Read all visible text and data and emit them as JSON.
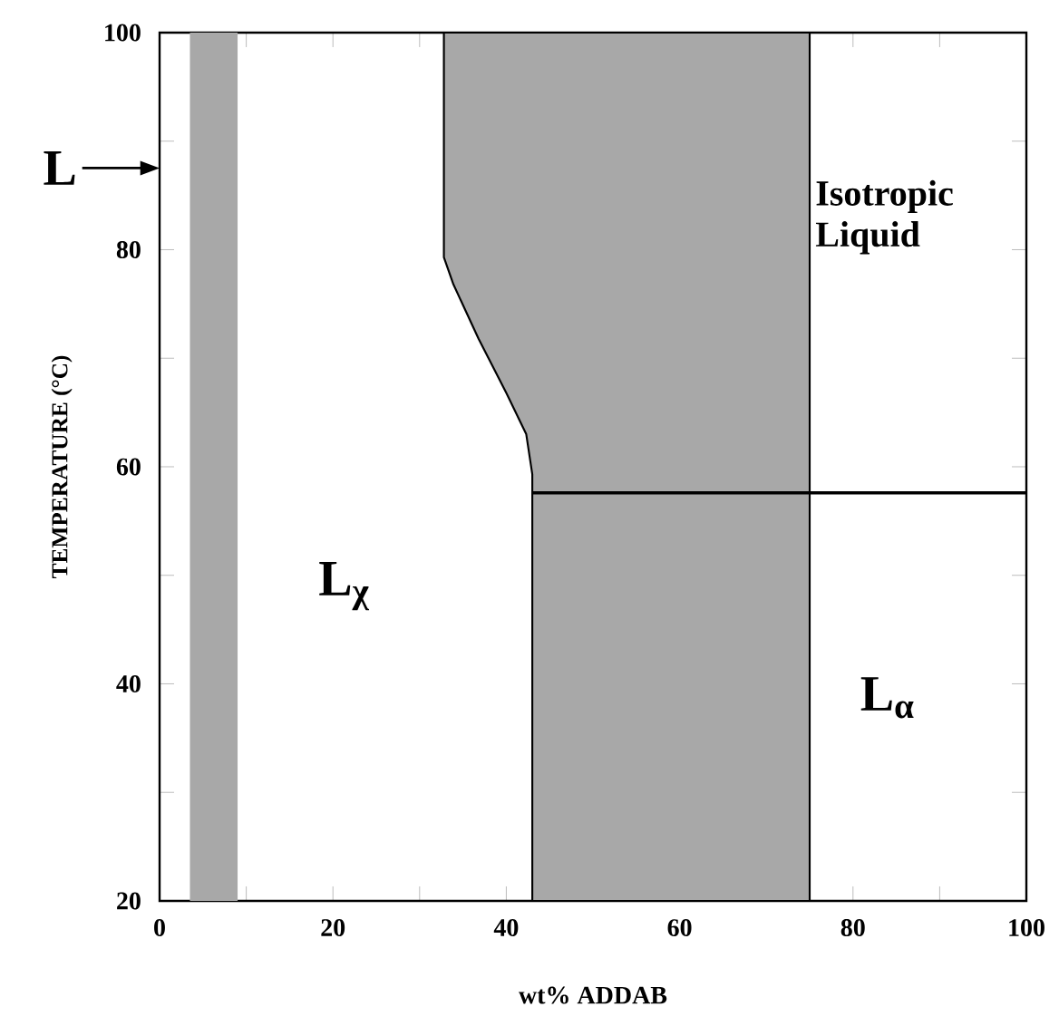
{
  "chart_data": {
    "type": "area",
    "xlabel": "wt% ADDAB",
    "ylabel": "TEMPERATURE (°C)",
    "xlim": [
      0,
      100
    ],
    "ylim": [
      20,
      100
    ],
    "xticks": [
      0,
      {
        "value": 10,
        "label": null
      },
      20,
      {
        "value": 30,
        "label": null
      },
      40,
      {
        "value": 50,
        "label": null
      },
      60,
      {
        "value": 70,
        "label": null
      },
      80,
      {
        "value": 90,
        "label": null
      },
      100
    ],
    "yticks": [
      20,
      {
        "value": 30,
        "label": null
      },
      40,
      {
        "value": 50,
        "label": null
      },
      60,
      {
        "value": 70,
        "label": null
      },
      80,
      {
        "value": 90,
        "label": null
      },
      100
    ],
    "grid": false,
    "bands": [
      {
        "axis": "x",
        "from": 3.5,
        "to": 9,
        "color": "#a8a8a8"
      }
    ],
    "series": [
      {
        "color": "#a8a8a8",
        "x": [
          32.8,
          32.8,
          33.9,
          36.8,
          40,
          42.3,
          43,
          43,
          75,
          75
        ],
        "values": [
          100,
          79.3,
          76.8,
          71.8,
          66.8,
          63,
          59.3,
          20,
          20,
          100
        ]
      },
      {
        "type": "line",
        "color": "#000000",
        "x": [
          43,
          100
        ],
        "values": [
          57.6,
          57.6
        ]
      }
    ],
    "annotations": [
      "L",
      "L$_{χ}$",
      "L$_{α}$",
      "Isotropic Liquid"
    ]
  }
}
